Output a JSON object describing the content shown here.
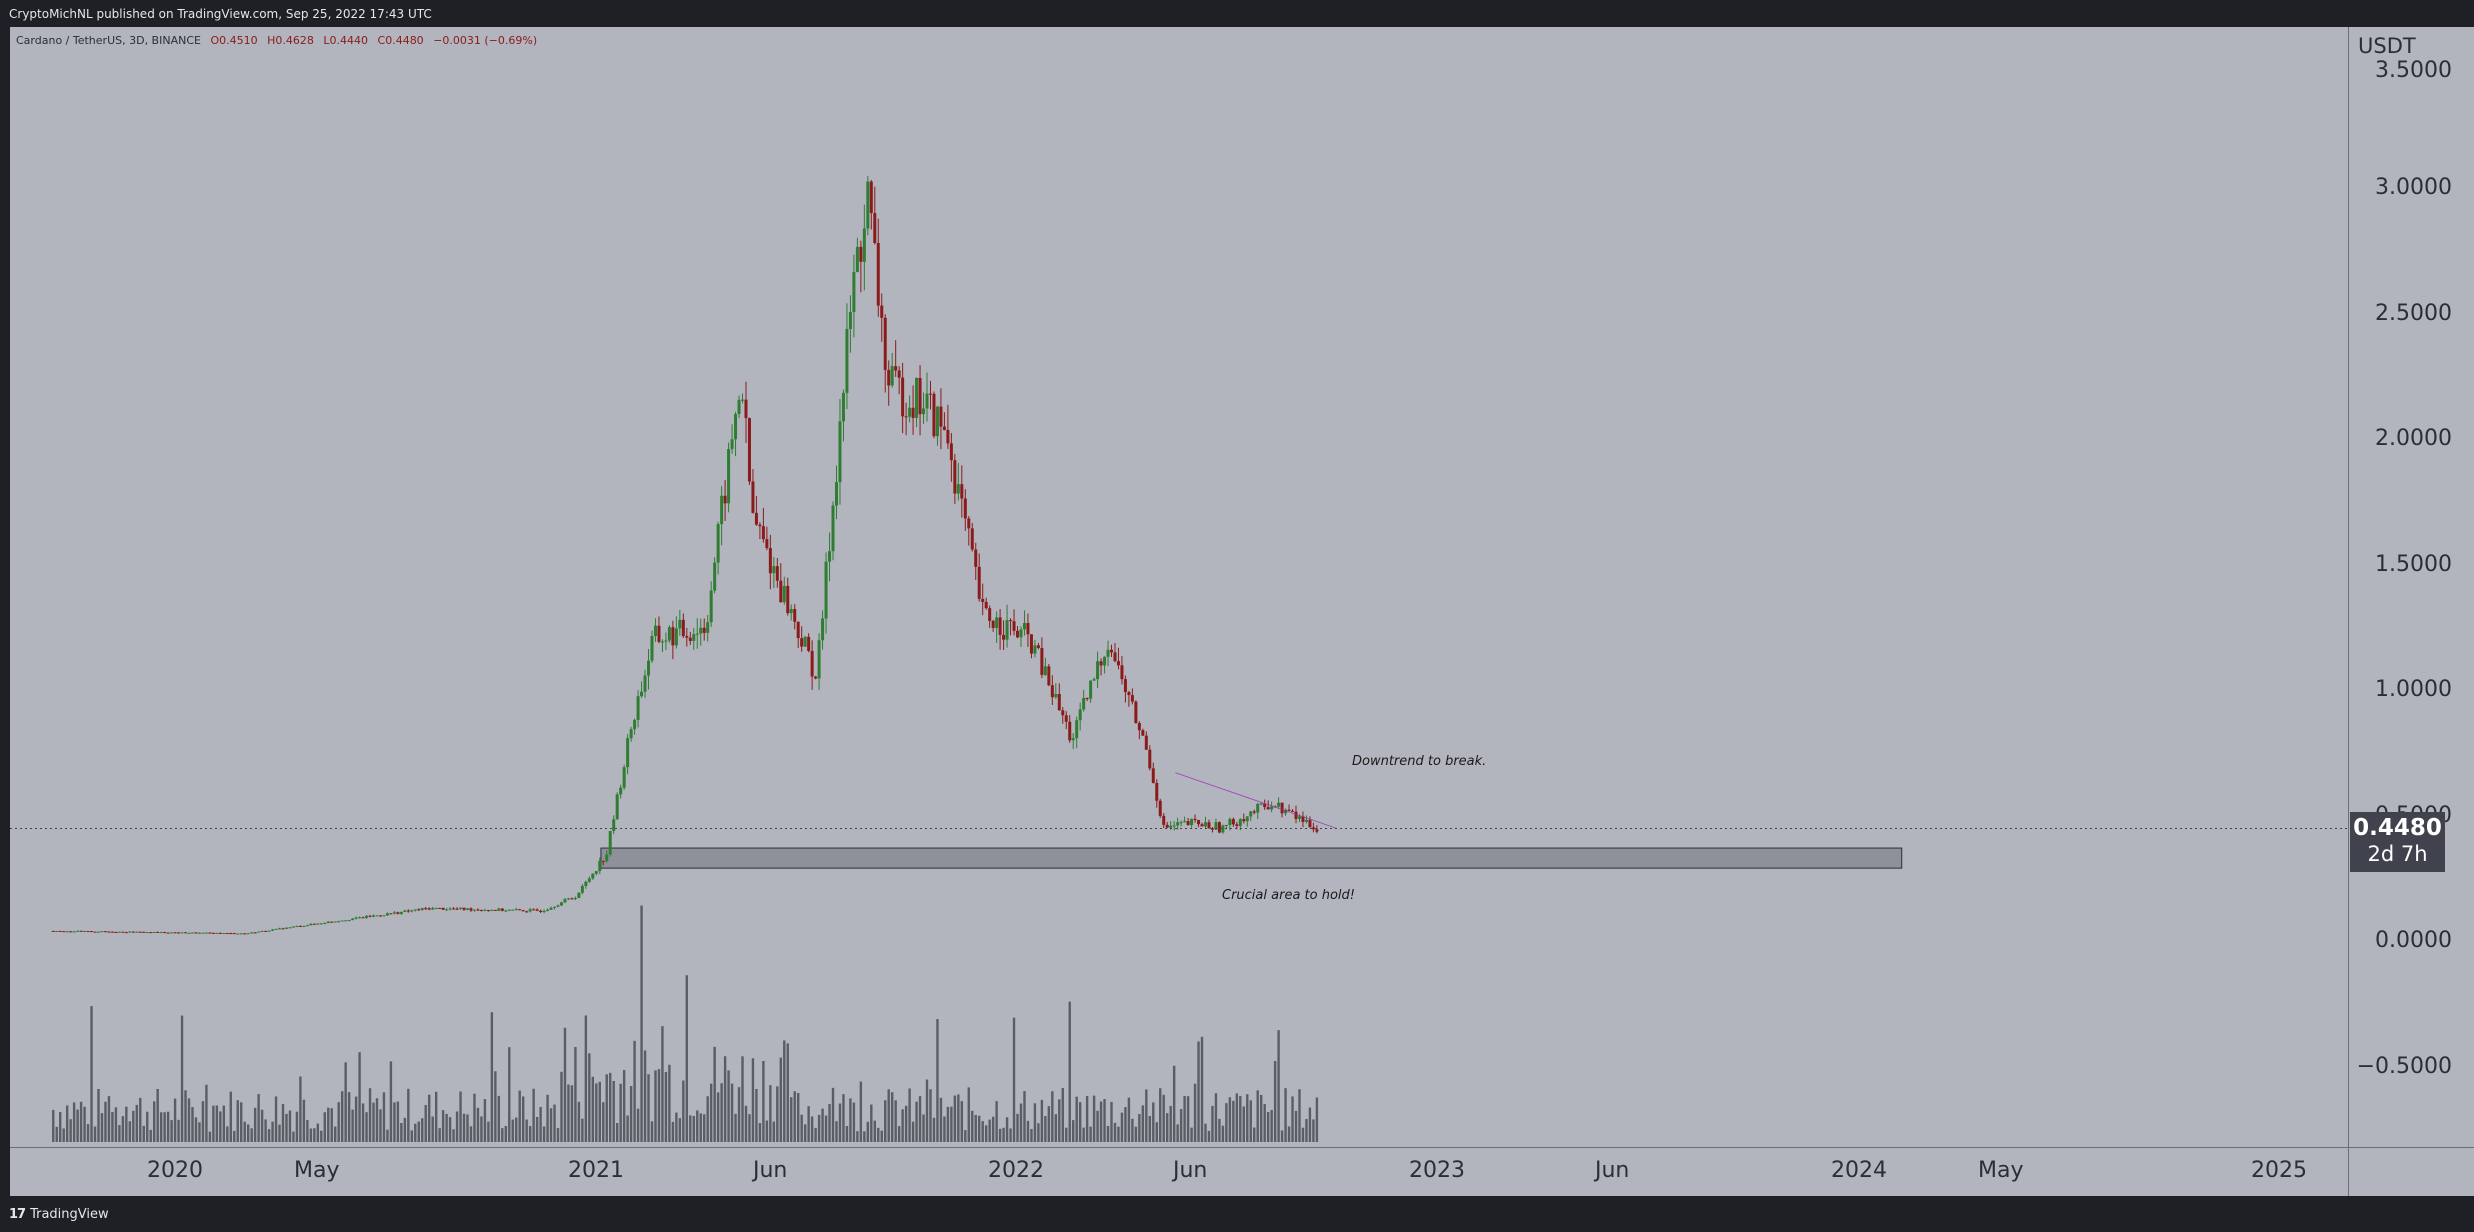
{
  "header": {
    "published_text": "CryptoMichNL published on TradingView.com, Sep 25, 2022 17:43 UTC"
  },
  "symbol": {
    "name": "Cardano / TetherUS, 3D, BINANCE",
    "open": "O0.4510",
    "high": "H0.4628",
    "low": "L0.4440",
    "close": "C0.4480",
    "change": "−0.0031 (−0.69%)"
  },
  "price_axis": {
    "unit": "USDT",
    "labels": [
      "3.5000",
      "3.0000",
      "2.5000",
      "2.0000",
      "1.5000",
      "1.0000",
      "0.5000",
      "0.0000",
      "−0.5000"
    ]
  },
  "last_price": {
    "price": "0.4480",
    "countdown": "2d 7h"
  },
  "time_axis": {
    "labels": [
      "2020",
      "May",
      "2021",
      "Jun",
      "2022",
      "Jun",
      "2023",
      "Jun",
      "2024",
      "May",
      "2025"
    ]
  },
  "annotations": {
    "downtrend": "Downtrend to break.",
    "support": "Crucial area to hold!"
  },
  "footer": {
    "logo_text": "TradingView",
    "logo_mark": "17"
  },
  "colors": {
    "background": "#b2b5be",
    "up": "#2e7d32",
    "down": "#8b1a1a",
    "volume": "#4a4d55",
    "frame": "#1e2025"
  },
  "chart_data": {
    "type": "candlestick",
    "title": "Cardano / TetherUS, 3D, BINANCE",
    "ylabel": "USDT",
    "ylim": [
      -0.85,
      3.5
    ],
    "x_range": [
      "2019-10",
      "2025-03"
    ],
    "grid": false,
    "key_points": [
      {
        "date": "2019-10-01",
        "close": 0.04
      },
      {
        "date": "2020-03-15",
        "close": 0.03
      },
      {
        "date": "2020-06-01",
        "close": 0.08
      },
      {
        "date": "2020-08-20",
        "close": 0.13
      },
      {
        "date": "2020-11-25",
        "close": 0.12
      },
      {
        "date": "2020-12-25",
        "close": 0.18
      },
      {
        "date": "2021-01-20",
        "close": 0.35
      },
      {
        "date": "2021-02-10",
        "close": 0.85
      },
      {
        "date": "2021-03-01",
        "close": 1.2
      },
      {
        "date": "2021-04-15",
        "close": 1.25
      },
      {
        "date": "2021-05-16",
        "close": 2.25
      },
      {
        "date": "2021-05-25",
        "close": 1.7
      },
      {
        "date": "2021-07-20",
        "close": 1.05
      },
      {
        "date": "2021-08-20",
        "close": 2.6
      },
      {
        "date": "2021-09-02",
        "close": 2.95
      },
      {
        "date": "2021-09-20",
        "close": 2.2
      },
      {
        "date": "2021-10-20",
        "close": 2.15
      },
      {
        "date": "2021-11-10",
        "close": 2.0
      },
      {
        "date": "2021-12-10",
        "close": 1.3
      },
      {
        "date": "2022-01-20",
        "close": 1.2
      },
      {
        "date": "2022-02-25",
        "close": 0.8
      },
      {
        "date": "2022-03-28",
        "close": 1.2
      },
      {
        "date": "2022-05-01",
        "close": 0.75
      },
      {
        "date": "2022-05-15",
        "close": 0.45
      },
      {
        "date": "2022-06-10",
        "close": 0.47
      },
      {
        "date": "2022-07-05",
        "close": 0.45
      },
      {
        "date": "2022-08-15",
        "close": 0.55
      },
      {
        "date": "2022-09-25",
        "close": 0.448
      }
    ],
    "trendline": {
      "from": {
        "date": "2022-05-25",
        "value": 0.67
      },
      "to": {
        "date": "2022-10-10",
        "value": 0.45
      }
    },
    "support_zone": {
      "from": "2021-01-15",
      "to": "2024-02-10",
      "low": 0.29,
      "high": 0.37
    },
    "last_price": 0.448
  }
}
